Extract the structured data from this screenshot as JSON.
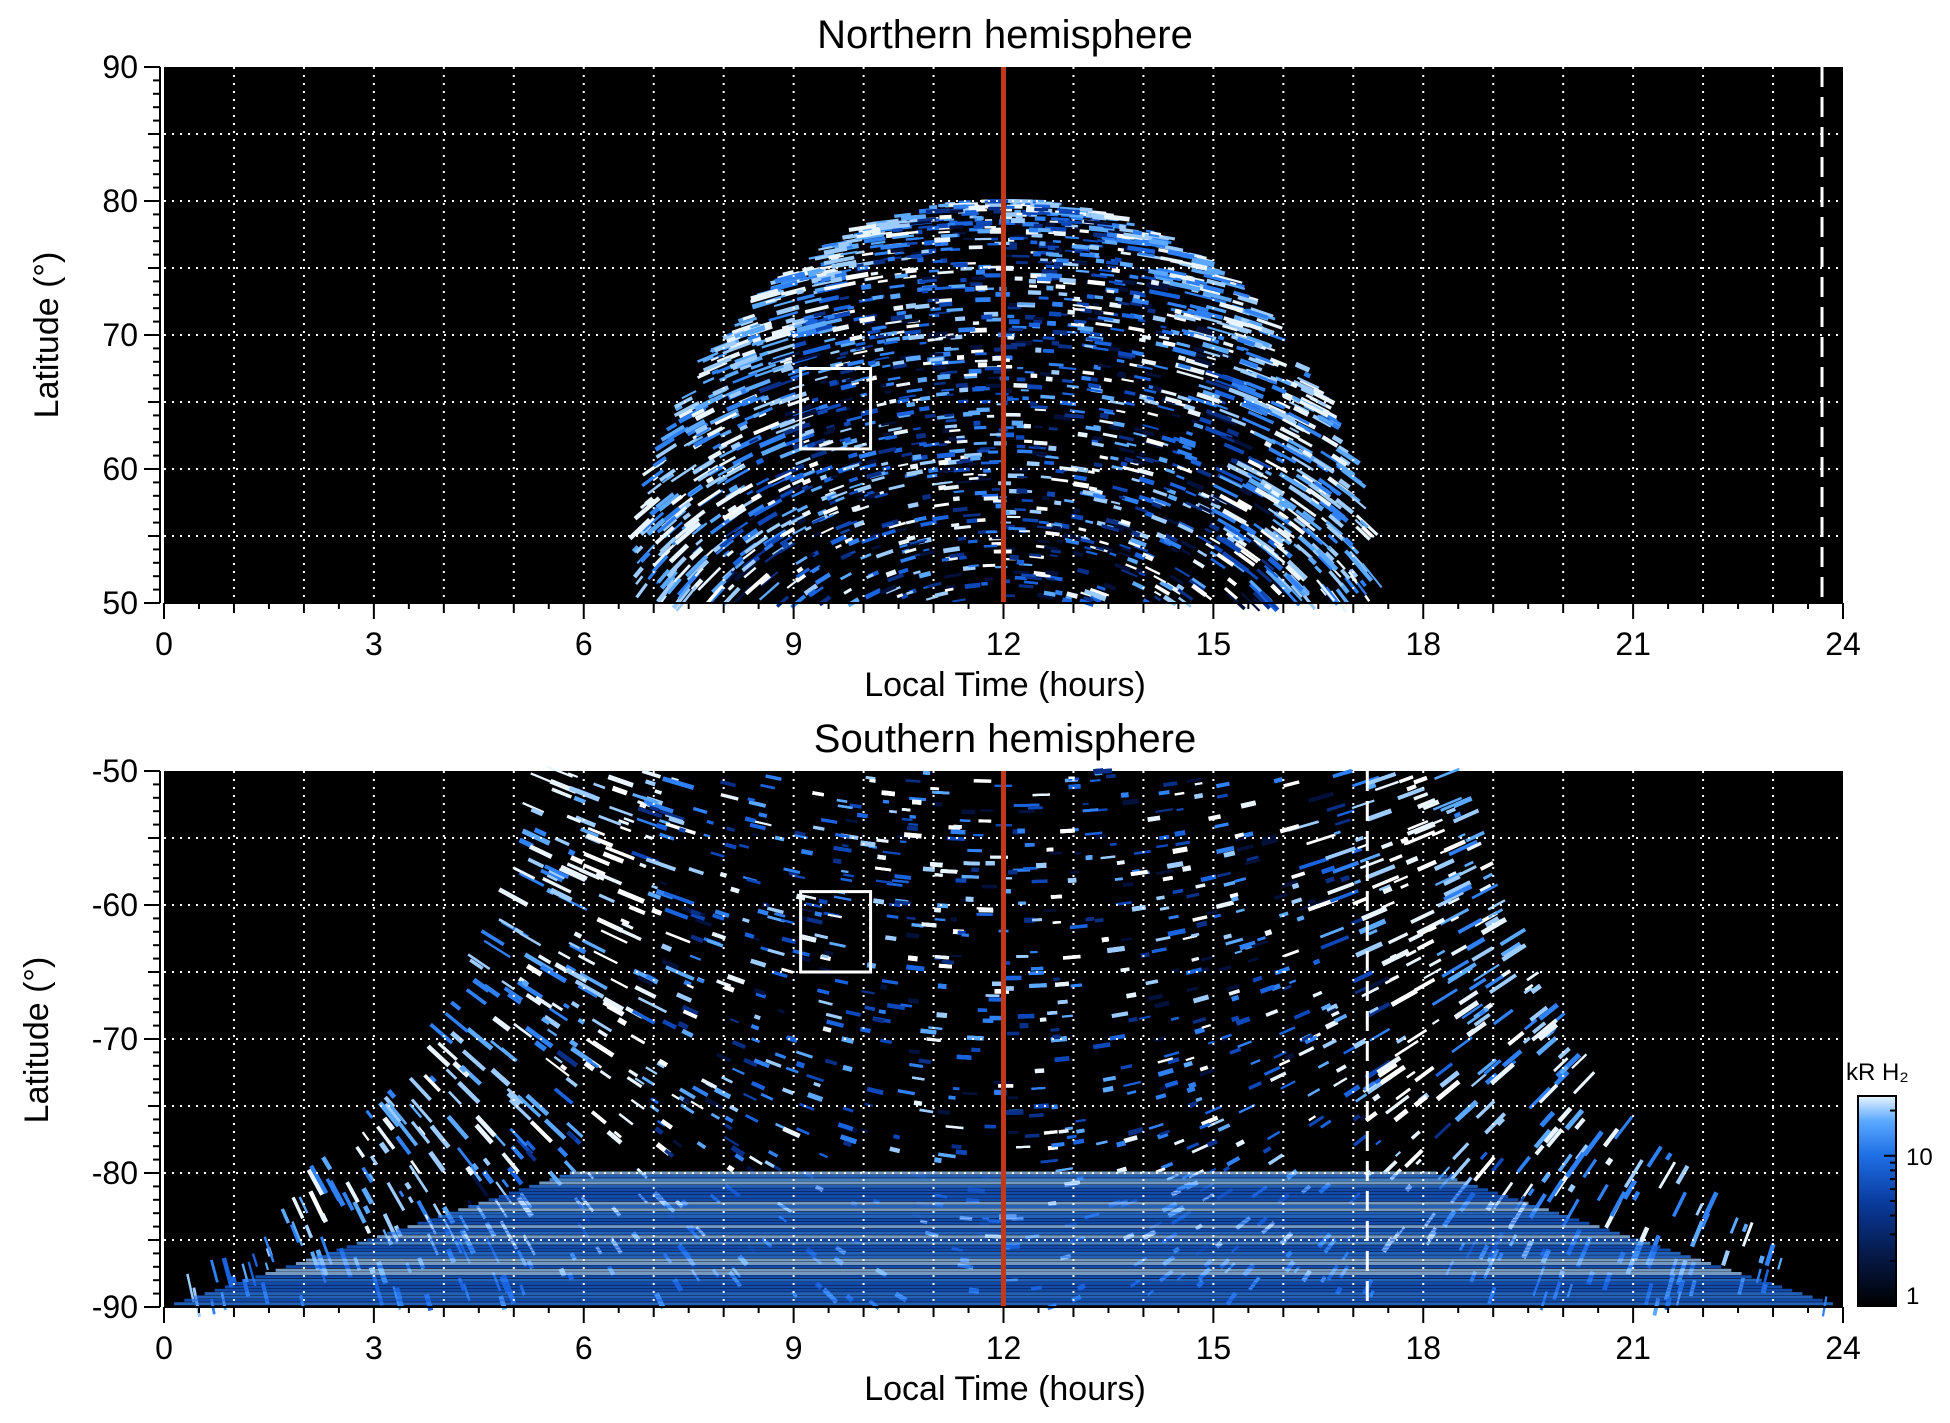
{
  "chart_data": [
    {
      "type": "heatmap",
      "title": "Northern hemisphere",
      "xlabel": "Local Time (hours)",
      "ylabel": "Latitude (°)",
      "xlim": [
        0,
        24
      ],
      "ylim": [
        50,
        90
      ],
      "xticks": [
        0,
        3,
        6,
        9,
        12,
        15,
        18,
        21,
        24
      ],
      "yticks": [
        50,
        60,
        70,
        80,
        90
      ],
      "grid": true,
      "grid_x_step_hours": 1,
      "grid_y_step_deg": 5,
      "background_color": "#000000",
      "emission_footprint": {
        "local_time_range": [
          7.0,
          17.2
        ],
        "latitude_range": [
          50,
          80
        ],
        "shape": "dome"
      },
      "marked_box": {
        "local_time": [
          9.1,
          10.1
        ],
        "latitude": [
          61.5,
          67.5
        ]
      },
      "red_line_local_time": 12,
      "red_line_color": "#c0391b",
      "dashed_line_local_time": 23.7
    },
    {
      "type": "heatmap",
      "title": "Southern hemisphere",
      "xlabel": "Local Time (hours)",
      "ylabel": "Latitude (°)",
      "xlim": [
        0,
        24
      ],
      "ylim": [
        -90,
        -50
      ],
      "xticks": [
        0,
        3,
        6,
        9,
        12,
        15,
        18,
        21,
        24
      ],
      "yticks": [
        -50,
        -60,
        -70,
        -80,
        -90
      ],
      "grid": true,
      "grid_x_step_hours": 1,
      "grid_y_step_deg": 5,
      "background_color": "#000000",
      "emission_footprint": {
        "local_time_range_at_minus50": [
          5.5,
          18.9
        ],
        "local_time_range_at_minus90": [
          0,
          24
        ],
        "shape": "fan widening toward pole"
      },
      "bright_arcs_local_time": [
        6.5,
        17.8
      ],
      "marked_box": {
        "local_time": [
          9.1,
          10.1
        ],
        "latitude": [
          -65.0,
          -59.0
        ]
      },
      "red_line_local_time": 12,
      "red_line_color": "#c0391b",
      "dashed_line_local_time": 17.2,
      "colorbar": {
        "label": "kR H₂",
        "scale": "log",
        "range": [
          1,
          25
        ],
        "tick_labels": [
          "1",
          "10"
        ],
        "tick_values": [
          1,
          10
        ],
        "colors": [
          "#000000",
          "#061a4a",
          "#0a3ca0",
          "#1f6fe6",
          "#5aa8ff",
          "#e8f4ff"
        ]
      }
    }
  ]
}
